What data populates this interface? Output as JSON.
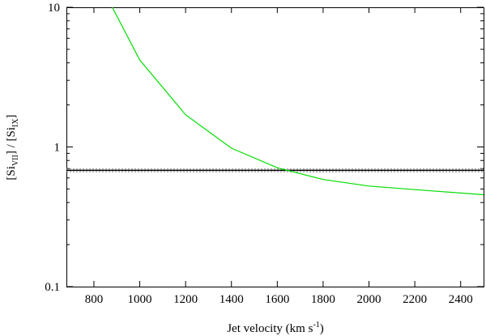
{
  "chart_data": {
    "type": "line",
    "xlabel": {
      "text": "Jet velocity (km s",
      "sup": "-1",
      "close": ")"
    },
    "ylabel": {
      "open": "[Si",
      "sub1": "VII",
      "mid": "] / [Si",
      "sub2": "IX",
      "close": "]"
    },
    "xlim": [
      680,
      2500
    ],
    "ylim": [
      0.1,
      10
    ],
    "yscale": "log",
    "grid": false,
    "xticks": [
      800,
      1000,
      1200,
      1400,
      1600,
      1800,
      2000,
      2200,
      2400
    ],
    "yticks": [
      {
        "value": 0.1,
        "label": "0.1"
      },
      {
        "value": 1,
        "label": "1"
      },
      {
        "value": 10,
        "label": "10"
      }
    ],
    "series": [
      {
        "color": "#00dd00",
        "x": [
          880,
          1000,
          1200,
          1400,
          1600,
          1800,
          2000,
          2200,
          2500
        ],
        "y": [
          10,
          4.2,
          1.7,
          0.98,
          0.71,
          0.585,
          0.525,
          0.495,
          0.455
        ]
      }
    ],
    "reference_lines": [
      {
        "y": 0.68,
        "color": "#000000",
        "style": "solid"
      },
      {
        "y": 0.665,
        "color": "#888888",
        "style": "dotted"
      },
      {
        "y": 0.695,
        "color": "#888888",
        "style": "dotted"
      }
    ]
  }
}
